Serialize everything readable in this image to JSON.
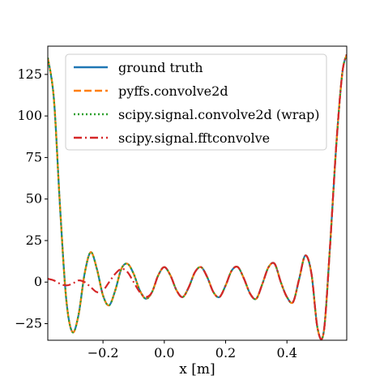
{
  "chart_data": {
    "type": "line",
    "title": "",
    "xlabel": "x [m]",
    "ylabel": "",
    "xlim": [
      -0.38,
      0.595
    ],
    "ylim": [
      -35,
      142
    ],
    "x_ticks": [
      -0.2,
      0.0,
      0.2,
      0.4
    ],
    "x_tick_labels": [
      "−0.2",
      "0.0",
      "0.2",
      "0.4"
    ],
    "y_ticks": [
      -25,
      0,
      25,
      50,
      75,
      100,
      125
    ],
    "y_tick_labels": [
      "−25",
      "0",
      "25",
      "50",
      "75",
      "100",
      "125"
    ],
    "grid": false,
    "legend_position": "top-right",
    "x": [
      -0.38,
      -0.36,
      -0.34,
      -0.32,
      -0.3,
      -0.28,
      -0.26,
      -0.24,
      -0.22,
      -0.2,
      -0.18,
      -0.16,
      -0.14,
      -0.12,
      -0.1,
      -0.08,
      -0.06,
      -0.04,
      -0.02,
      0.0,
      0.02,
      0.04,
      0.06,
      0.08,
      0.1,
      0.12,
      0.14,
      0.16,
      0.18,
      0.2,
      0.22,
      0.24,
      0.26,
      0.28,
      0.3,
      0.32,
      0.34,
      0.36,
      0.38,
      0.4,
      0.42,
      0.44,
      0.46,
      0.48,
      0.5,
      0.52,
      0.54,
      0.56,
      0.58,
      0.595
    ],
    "series": [
      {
        "name": "ground truth",
        "color": "#1f77b4",
        "style": "solid",
        "values": [
          135,
          110,
          45,
          -10,
          -30,
          -20,
          5,
          18,
          8,
          -8,
          -14,
          -5,
          8,
          11,
          5,
          -5,
          -10,
          -6,
          4,
          9,
          4,
          -5,
          -9,
          -3,
          6,
          9,
          3,
          -6,
          -9,
          -2,
          7,
          9,
          2,
          -7,
          -10,
          -1,
          9,
          11,
          0,
          -9,
          -12,
          2,
          16,
          5,
          -28,
          -30,
          20,
          80,
          125,
          137
        ]
      },
      {
        "name": "pyffs.convolve2d",
        "color": "#ff7f0e",
        "style": "dashed",
        "values": [
          135,
          110,
          45,
          -10,
          -30,
          -20,
          5,
          18,
          8,
          -8,
          -14,
          -5,
          8,
          11,
          5,
          -5,
          -10,
          -6,
          4,
          9,
          4,
          -5,
          -9,
          -3,
          6,
          9,
          3,
          -6,
          -9,
          -2,
          7,
          9,
          2,
          -7,
          -10,
          -1,
          9,
          11,
          0,
          -9,
          -12,
          2,
          16,
          5,
          -28,
          -30,
          20,
          80,
          125,
          137
        ]
      },
      {
        "name": "scipy.signal.convolve2d (wrap)",
        "color": "#2ca02c",
        "style": "dotted",
        "values": [
          135,
          110,
          45,
          -10,
          -30,
          -20,
          5,
          18,
          8,
          -8,
          -14,
          -5,
          8,
          11,
          5,
          -5,
          -10,
          -6,
          4,
          9,
          4,
          -5,
          -9,
          -3,
          6,
          9,
          3,
          -6,
          -9,
          -2,
          7,
          9,
          2,
          -7,
          -10,
          -1,
          9,
          11,
          0,
          -9,
          -12,
          2,
          16,
          5,
          -28,
          -30,
          20,
          80,
          125,
          137
        ]
      },
      {
        "name": "scipy.signal.fftconvolve",
        "color": "#d62728",
        "style": "dashdot",
        "values": [
          2,
          1,
          -1,
          -2,
          -1,
          1,
          0,
          -3,
          -6,
          -5,
          0,
          5,
          8,
          6,
          0,
          -6,
          -9,
          -6,
          4,
          9,
          4,
          -5,
          -9,
          -3,
          6,
          9,
          3,
          -6,
          -9,
          -2,
          7,
          9,
          2,
          -7,
          -10,
          -1,
          9,
          11,
          0,
          -9,
          -12,
          2,
          16,
          5,
          -28,
          -30,
          20,
          80,
          125,
          137
        ]
      }
    ]
  }
}
